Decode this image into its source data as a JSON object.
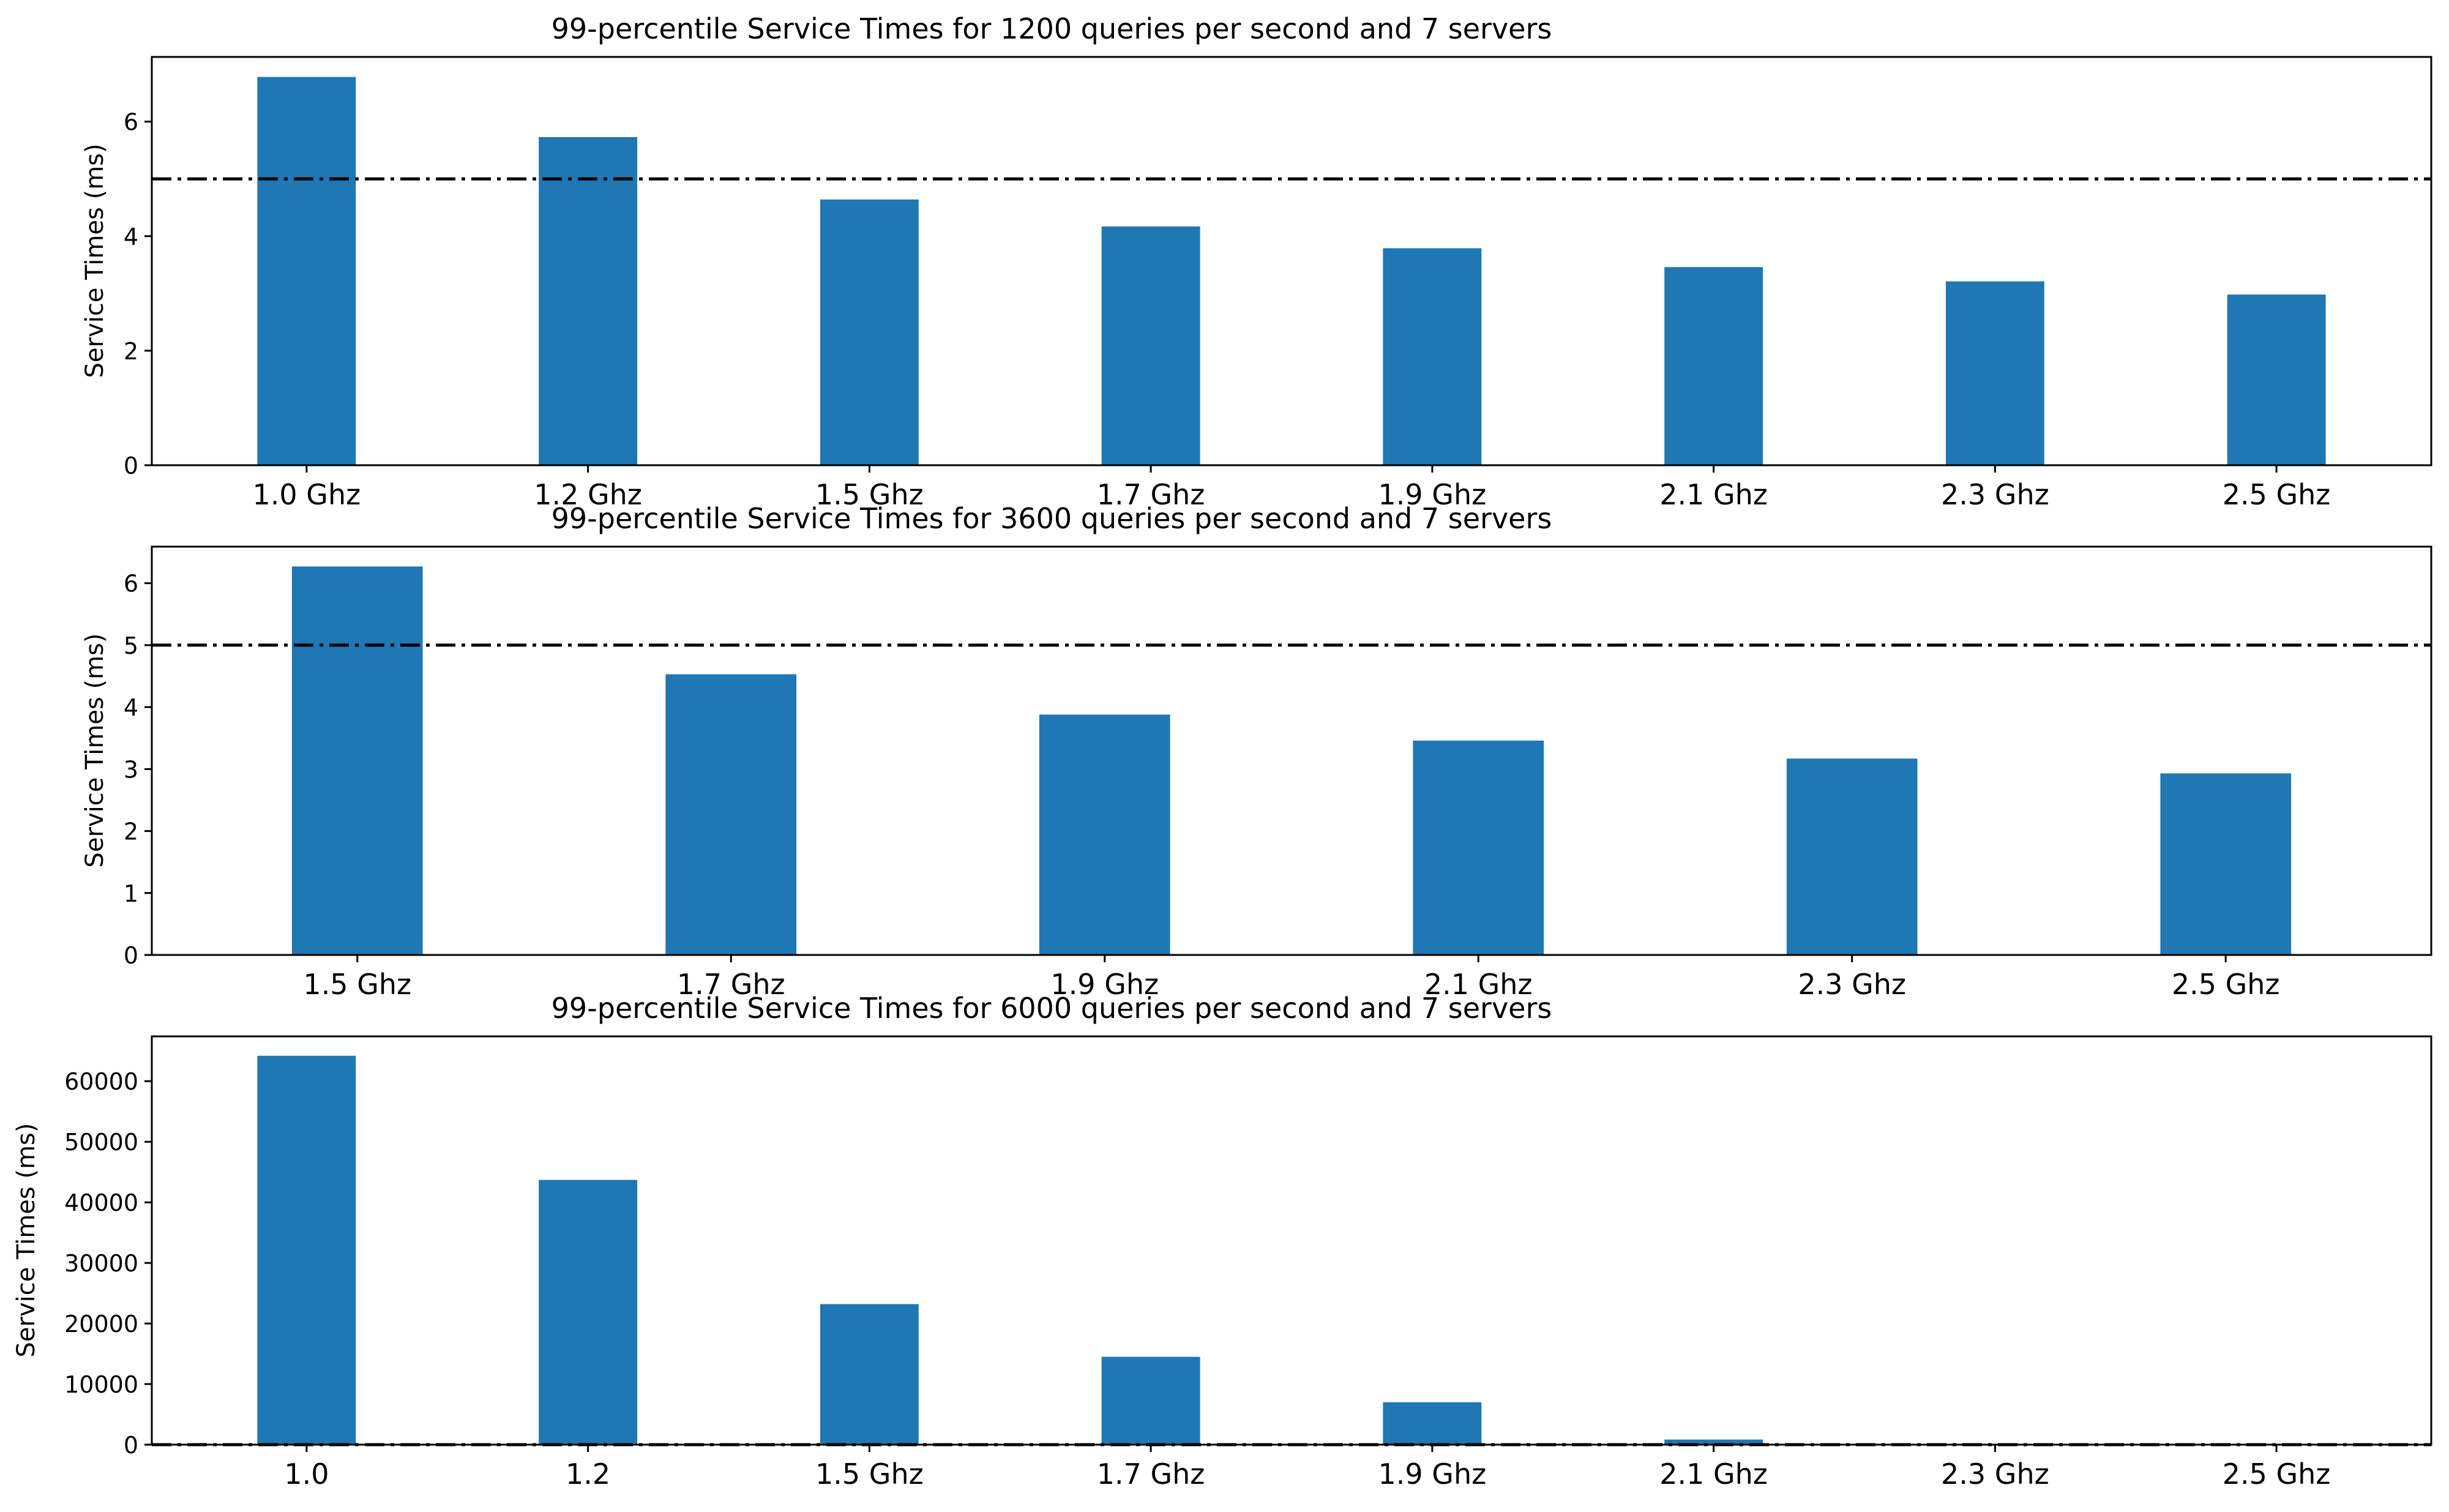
{
  "colors": {
    "bar": "#1f77b4",
    "threshold_line": "#000000",
    "axes": "#000000",
    "background": "#ffffff"
  },
  "chart_data": [
    {
      "type": "bar",
      "title": "99-percentile Service Times for 1200 queries per second and 7 servers",
      "xlabel": "",
      "ylabel": "Service Times (ms)",
      "categories": [
        "1.0 Ghz",
        "1.2 Ghz",
        "1.5 Ghz",
        "1.7 Ghz",
        "1.9 Ghz",
        "2.1 Ghz",
        "2.3 Ghz",
        "2.5 Ghz"
      ],
      "values": [
        6.78,
        5.73,
        4.64,
        4.17,
        3.79,
        3.46,
        3.21,
        2.98
      ],
      "ylim": [
        0,
        7.13
      ],
      "yticks": [
        0,
        2,
        4,
        6
      ],
      "threshold": 5,
      "grid": false,
      "legend": "none"
    },
    {
      "type": "bar",
      "title": "99-percentile Service Times for 3600 queries per second and 7 servers",
      "xlabel": "",
      "ylabel": "Service Times (ms)",
      "categories": [
        "1.5 Ghz",
        "1.7 Ghz",
        "1.9 Ghz",
        "2.1 Ghz",
        "2.3 Ghz",
        "2.5 Ghz"
      ],
      "values": [
        6.27,
        4.53,
        3.88,
        3.46,
        3.17,
        2.93
      ],
      "ylim": [
        0,
        6.59
      ],
      "yticks": [
        0,
        1,
        2,
        3,
        4,
        5,
        6
      ],
      "threshold": 5,
      "grid": false,
      "legend": "none"
    },
    {
      "type": "bar",
      "title": "99-percentile Service Times for 6000 queries per second and 7 servers",
      "xlabel": "",
      "ylabel": "Service Times (ms)",
      "categories": [
        "1.0",
        "1.2",
        "1.5 Ghz",
        "1.7 Ghz",
        "1.9 Ghz",
        "2.1 Ghz",
        "2.3 Ghz",
        "2.5 Ghz"
      ],
      "values": [
        64200,
        43700,
        23200,
        14500,
        7000,
        850,
        60,
        40
      ],
      "ylim": [
        0,
        67400
      ],
      "yticks": [
        0,
        10000,
        20000,
        30000,
        40000,
        50000,
        60000
      ],
      "threshold": 5,
      "grid": false,
      "legend": "none"
    }
  ]
}
